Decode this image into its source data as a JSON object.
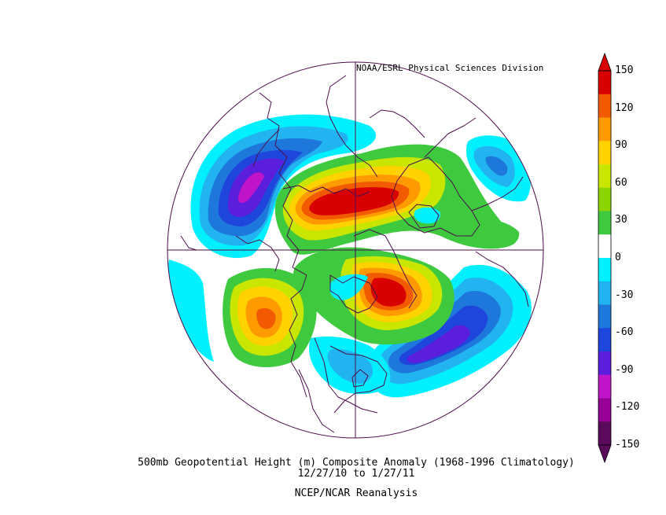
{
  "credit": "NOAA/ESRL Physical Sciences Division",
  "title_line1": "500mb Geopotential Height (m) Composite Anomaly (1968-1996 Climatology)",
  "title_line2": "12/27/10  to 1/27/11",
  "title_line3": "NCEP/NCAR Reanalysis",
  "colorbar": {
    "ticks": [
      "150",
      "120",
      "90",
      "60",
      "30",
      "0",
      "-30",
      "-60",
      "-90",
      "-120",
      "-150"
    ],
    "colors": [
      "#d90000",
      "#f25a00",
      "#ff9b00",
      "#ffd200",
      "#c8e600",
      "#8ad400",
      "#3fc93f",
      "#ffffff",
      "#00f0ff",
      "#22b4f0",
      "#1e78dc",
      "#1e46dc",
      "#5a1edc",
      "#c014c8",
      "#960096",
      "#5a0a5a"
    ]
  }
}
